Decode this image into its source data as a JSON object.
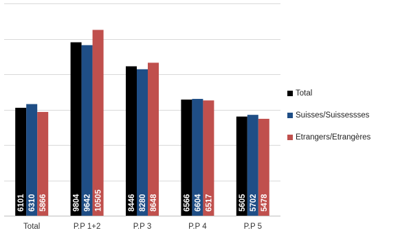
{
  "chart_data": {
    "type": "bar",
    "title": "",
    "xlabel": "",
    "ylabel": "",
    "categories": [
      "Total",
      "P.P 1+2",
      "P.P 3",
      "P.P 4",
      "P.P 5"
    ],
    "series": [
      {
        "name": "Total",
        "color": "#000000",
        "values": [
          6101,
          9804,
          8446,
          6566,
          5605
        ]
      },
      {
        "name": "Suisses/Suissessses",
        "color": "#1f4e86",
        "values": [
          6310,
          9642,
          8280,
          6604,
          5702
        ]
      },
      {
        "name": "Etrangers/Etrangères",
        "color": "#c0504d",
        "values": [
          5866,
          10505,
          8648,
          6517,
          5478
        ]
      }
    ],
    "ylim": [
      0,
      12000
    ],
    "grid": true,
    "gridlines": [
      0,
      2000,
      4000,
      6000,
      8000,
      10000,
      12000
    ],
    "data_labels": "inside-bottom-rotated",
    "legend_position": "right"
  }
}
